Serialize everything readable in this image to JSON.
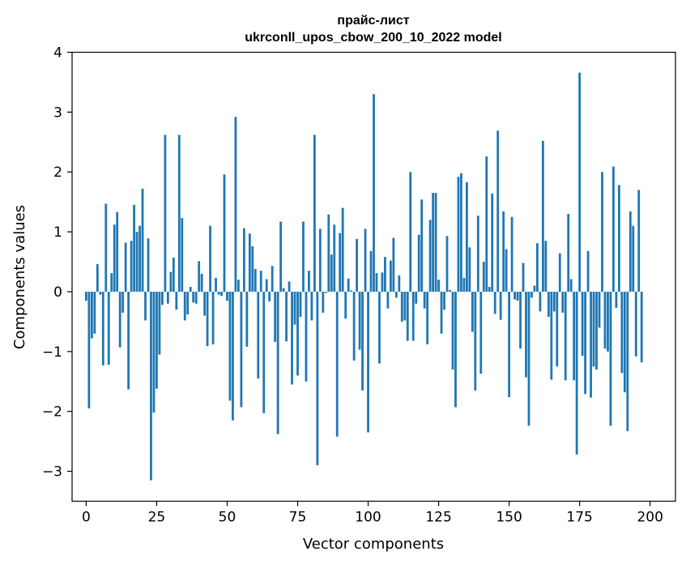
{
  "chart_data": {
    "type": "bar",
    "title_line1": "прайс-лист",
    "title_line2": "ukrconll_upos_cbow_200_10_2022 model",
    "xlabel": "Vector components",
    "ylabel": "Components values",
    "xlim": [
      -5,
      209
    ],
    "ylim": [
      -3.5,
      4
    ],
    "xticks": [
      0,
      25,
      50,
      75,
      100,
      125,
      150,
      175,
      200
    ],
    "yticks": [
      -3,
      -2,
      -1,
      0,
      1,
      2,
      3,
      4
    ],
    "ytick_labels": [
      "−3",
      "−2",
      "−1",
      "0",
      "1",
      "2",
      "3",
      "4"
    ],
    "color": "#1f77b4",
    "values": [
      -0.15,
      -1.95,
      -0.78,
      -0.7,
      0.46,
      -0.05,
      -1.23,
      1.47,
      -1.22,
      0.31,
      1.12,
      1.33,
      -0.93,
      -0.35,
      0.82,
      -1.63,
      0.85,
      1.45,
      1.0,
      1.1,
      1.72,
      -0.48,
      0.89,
      -3.15,
      -2.02,
      -1.62,
      -1.05,
      -0.22,
      2.62,
      -0.2,
      0.33,
      0.57,
      -0.3,
      2.62,
      1.23,
      -0.48,
      -0.38,
      0.08,
      -0.18,
      -0.2,
      0.51,
      0.3,
      -0.4,
      -0.91,
      1.1,
      -0.88,
      0.23,
      -0.05,
      -0.07,
      1.96,
      -0.15,
      -1.82,
      -2.15,
      2.92,
      0.2,
      -1.93,
      1.06,
      -0.92,
      0.97,
      0.76,
      0.38,
      -1.45,
      0.35,
      -2.03,
      0.21,
      -0.16,
      0.43,
      -0.84,
      -2.38,
      1.17,
      0.06,
      -0.83,
      0.17,
      -1.55,
      -0.55,
      -1.4,
      -0.42,
      1.17,
      -1.5,
      0.35,
      -0.48,
      2.62,
      -2.9,
      1.05,
      -0.35,
      -0.02,
      1.29,
      0.62,
      1.12,
      -2.42,
      0.98,
      1.4,
      -0.45,
      0.22,
      0.02,
      -1.15,
      0.88,
      -0.97,
      -1.65,
      1.05,
      -2.35,
      0.68,
      3.3,
      0.31,
      -1.2,
      0.32,
      0.58,
      -0.28,
      0.52,
      0.9,
      -0.1,
      0.27,
      -0.5,
      -0.48,
      -0.82,
      2.0,
      -0.82,
      -0.2,
      0.95,
      1.54,
      -0.28,
      -0.88,
      1.2,
      1.65,
      1.65,
      0.2,
      -0.7,
      -0.3,
      0.93,
      0.03,
      -1.3,
      -1.93,
      1.92,
      1.98,
      0.23,
      1.83,
      0.74,
      -0.67,
      -1.65,
      1.27,
      -1.37,
      0.5,
      2.26,
      0.08,
      1.64,
      -0.37,
      2.69,
      -0.47,
      1.34,
      0.71,
      -1.76,
      1.25,
      -0.13,
      -0.15,
      -0.95,
      0.48,
      -1.43,
      -2.24,
      -0.1,
      0.1,
      0.81,
      -0.33,
      2.52,
      0.85,
      -0.42,
      -1.47,
      -0.33,
      -1.25,
      0.64,
      -0.35,
      -1.48,
      1.3,
      0.21,
      -1.48,
      -2.72,
      3.66,
      -1.07,
      -1.71,
      0.68,
      -1.77,
      -1.25,
      -1.3,
      -0.6,
      2.0,
      -0.95,
      -1.0,
      -2.24,
      2.09,
      -0.27,
      1.78,
      -1.36,
      -1.68,
      -2.33,
      1.34,
      1.1,
      -1.08,
      1.7,
      -1.18,
      0.0,
      0.0
    ]
  }
}
